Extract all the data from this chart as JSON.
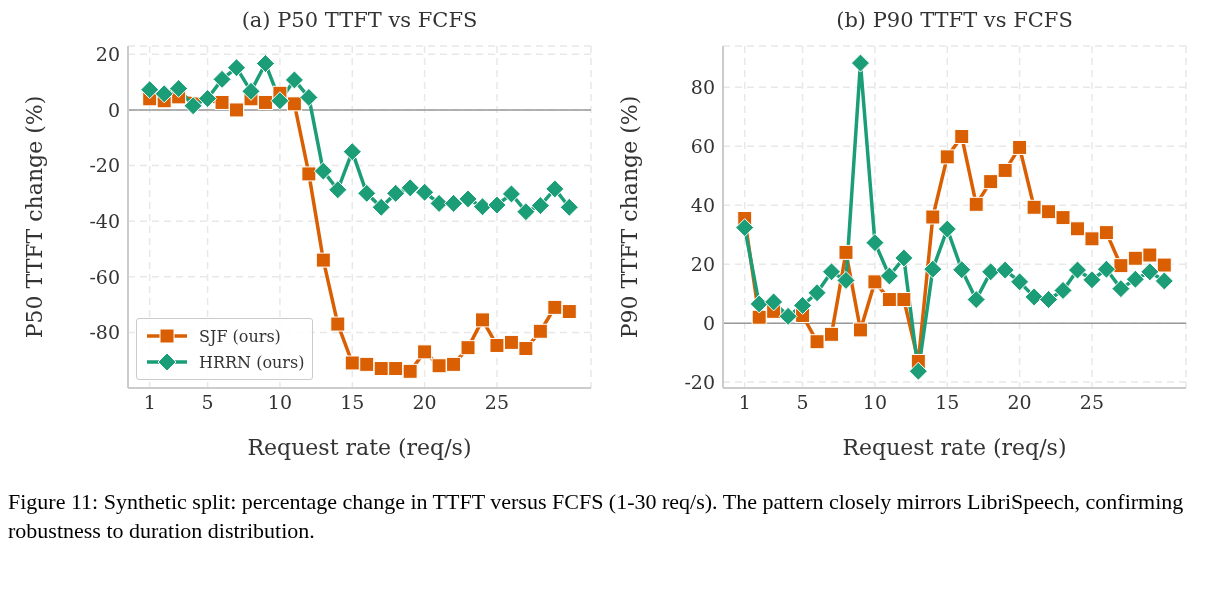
{
  "chart_data": [
    {
      "type": "line",
      "title": "(a) P50 TTFT vs FCFS",
      "xlabel": "Request rate (req/s)",
      "ylabel": "P50 TTFT change (%)",
      "x": [
        1,
        2,
        3,
        4,
        5,
        6,
        7,
        8,
        9,
        10,
        11,
        12,
        13,
        14,
        15,
        16,
        17,
        18,
        19,
        20,
        21,
        22,
        23,
        24,
        25,
        26,
        27,
        28,
        29,
        30
      ],
      "series": [
        {
          "name": "SJF (ours)",
          "color": "#d95f02",
          "marker": "square",
          "values": [
            4,
            3.3,
            4.7,
            null,
            null,
            2.7,
            0,
            4,
            2.7,
            6,
            2.2,
            -23,
            -54,
            -77,
            -91,
            -91.5,
            -93,
            -93,
            -94,
            -87,
            -92,
            -91.5,
            -85.5,
            -75.5,
            -84.7,
            -83.6,
            -85.8,
            -79.6,
            -71,
            -72.5
          ]
        },
        {
          "name": "HRRN (ours)",
          "color": "#1b9e77",
          "marker": "diamond",
          "values": [
            7.3,
            5.8,
            7.7,
            1.5,
            4.1,
            11,
            15.2,
            6.7,
            16.7,
            3.3,
            10.8,
            4.5,
            -22,
            -28.7,
            -15,
            -30,
            -35,
            -30,
            -28,
            -29.6,
            -33.6,
            -33.6,
            -32,
            -34.8,
            -34.2,
            -30.2,
            -36.6,
            -34.4,
            -28.4,
            -35
          ]
        }
      ],
      "xlim": [
        -0.5,
        31.5
      ],
      "xticks": [
        1,
        5,
        10,
        15,
        20,
        25
      ],
      "ylim": [
        -100,
        23
      ],
      "yticks": [
        -80,
        -60,
        -40,
        -20,
        0,
        20
      ],
      "grid": true,
      "legend": "bottom left",
      "line_style": "solid",
      "ref_lines": [
        {
          "axis": "y",
          "value": 0,
          "color": "#999999"
        }
      ],
      "annotations": [
        "Figure 11: Synthetic split: percentage change in TTFT versus FCFS (1-30 req/s). The pattern closely mirrors LibriSpeech, confirming robustness to duration distribution."
      ]
    },
    {
      "type": "line",
      "title": "(b) P90 TTFT vs FCFS",
      "xlabel": "Request rate (req/s)",
      "ylabel": "P90 TTFT change (%)",
      "x": [
        1,
        2,
        3,
        4,
        5,
        6,
        7,
        8,
        9,
        10,
        11,
        12,
        13,
        14,
        15,
        16,
        17,
        18,
        19,
        20,
        21,
        22,
        23,
        24,
        25,
        26,
        27,
        28,
        29,
        30
      ],
      "series": [
        {
          "color": "#d95f02",
          "marker": "square",
          "values": [
            35.5,
            2,
            4,
            null,
            2.6,
            -6.3,
            -3.8,
            24,
            -2.3,
            14,
            8,
            8,
            -13,
            36,
            56.4,
            63.3,
            40.3,
            48,
            51.8,
            59.6,
            39.3,
            37.8,
            35.8,
            32,
            28.6,
            30.7,
            19.5,
            22,
            23.1,
            19.7
          ]
        },
        {
          "color": "#1b9e77",
          "marker": "diamond",
          "values": [
            32.4,
            6.5,
            7.2,
            2.3,
            6,
            10.3,
            17.4,
            14.5,
            88.2,
            27.3,
            16,
            22.1,
            -16.3,
            18.3,
            31.9,
            18.1,
            8,
            17.4,
            18,
            14,
            8.9,
            8,
            11.1,
            18,
            14.7,
            18.3,
            11.7,
            14.9,
            17.4,
            14.3
          ]
        }
      ],
      "xlim": [
        -0.5,
        31.5
      ],
      "xticks": [
        1,
        5,
        10,
        15,
        20,
        25
      ],
      "ylim": [
        -22,
        94
      ],
      "yticks": [
        -20,
        0,
        20,
        40,
        60,
        80
      ],
      "grid": true,
      "line_style": "solid",
      "ref_lines": [
        {
          "axis": "y",
          "value": 0,
          "color": "#999999"
        }
      ]
    }
  ]
}
